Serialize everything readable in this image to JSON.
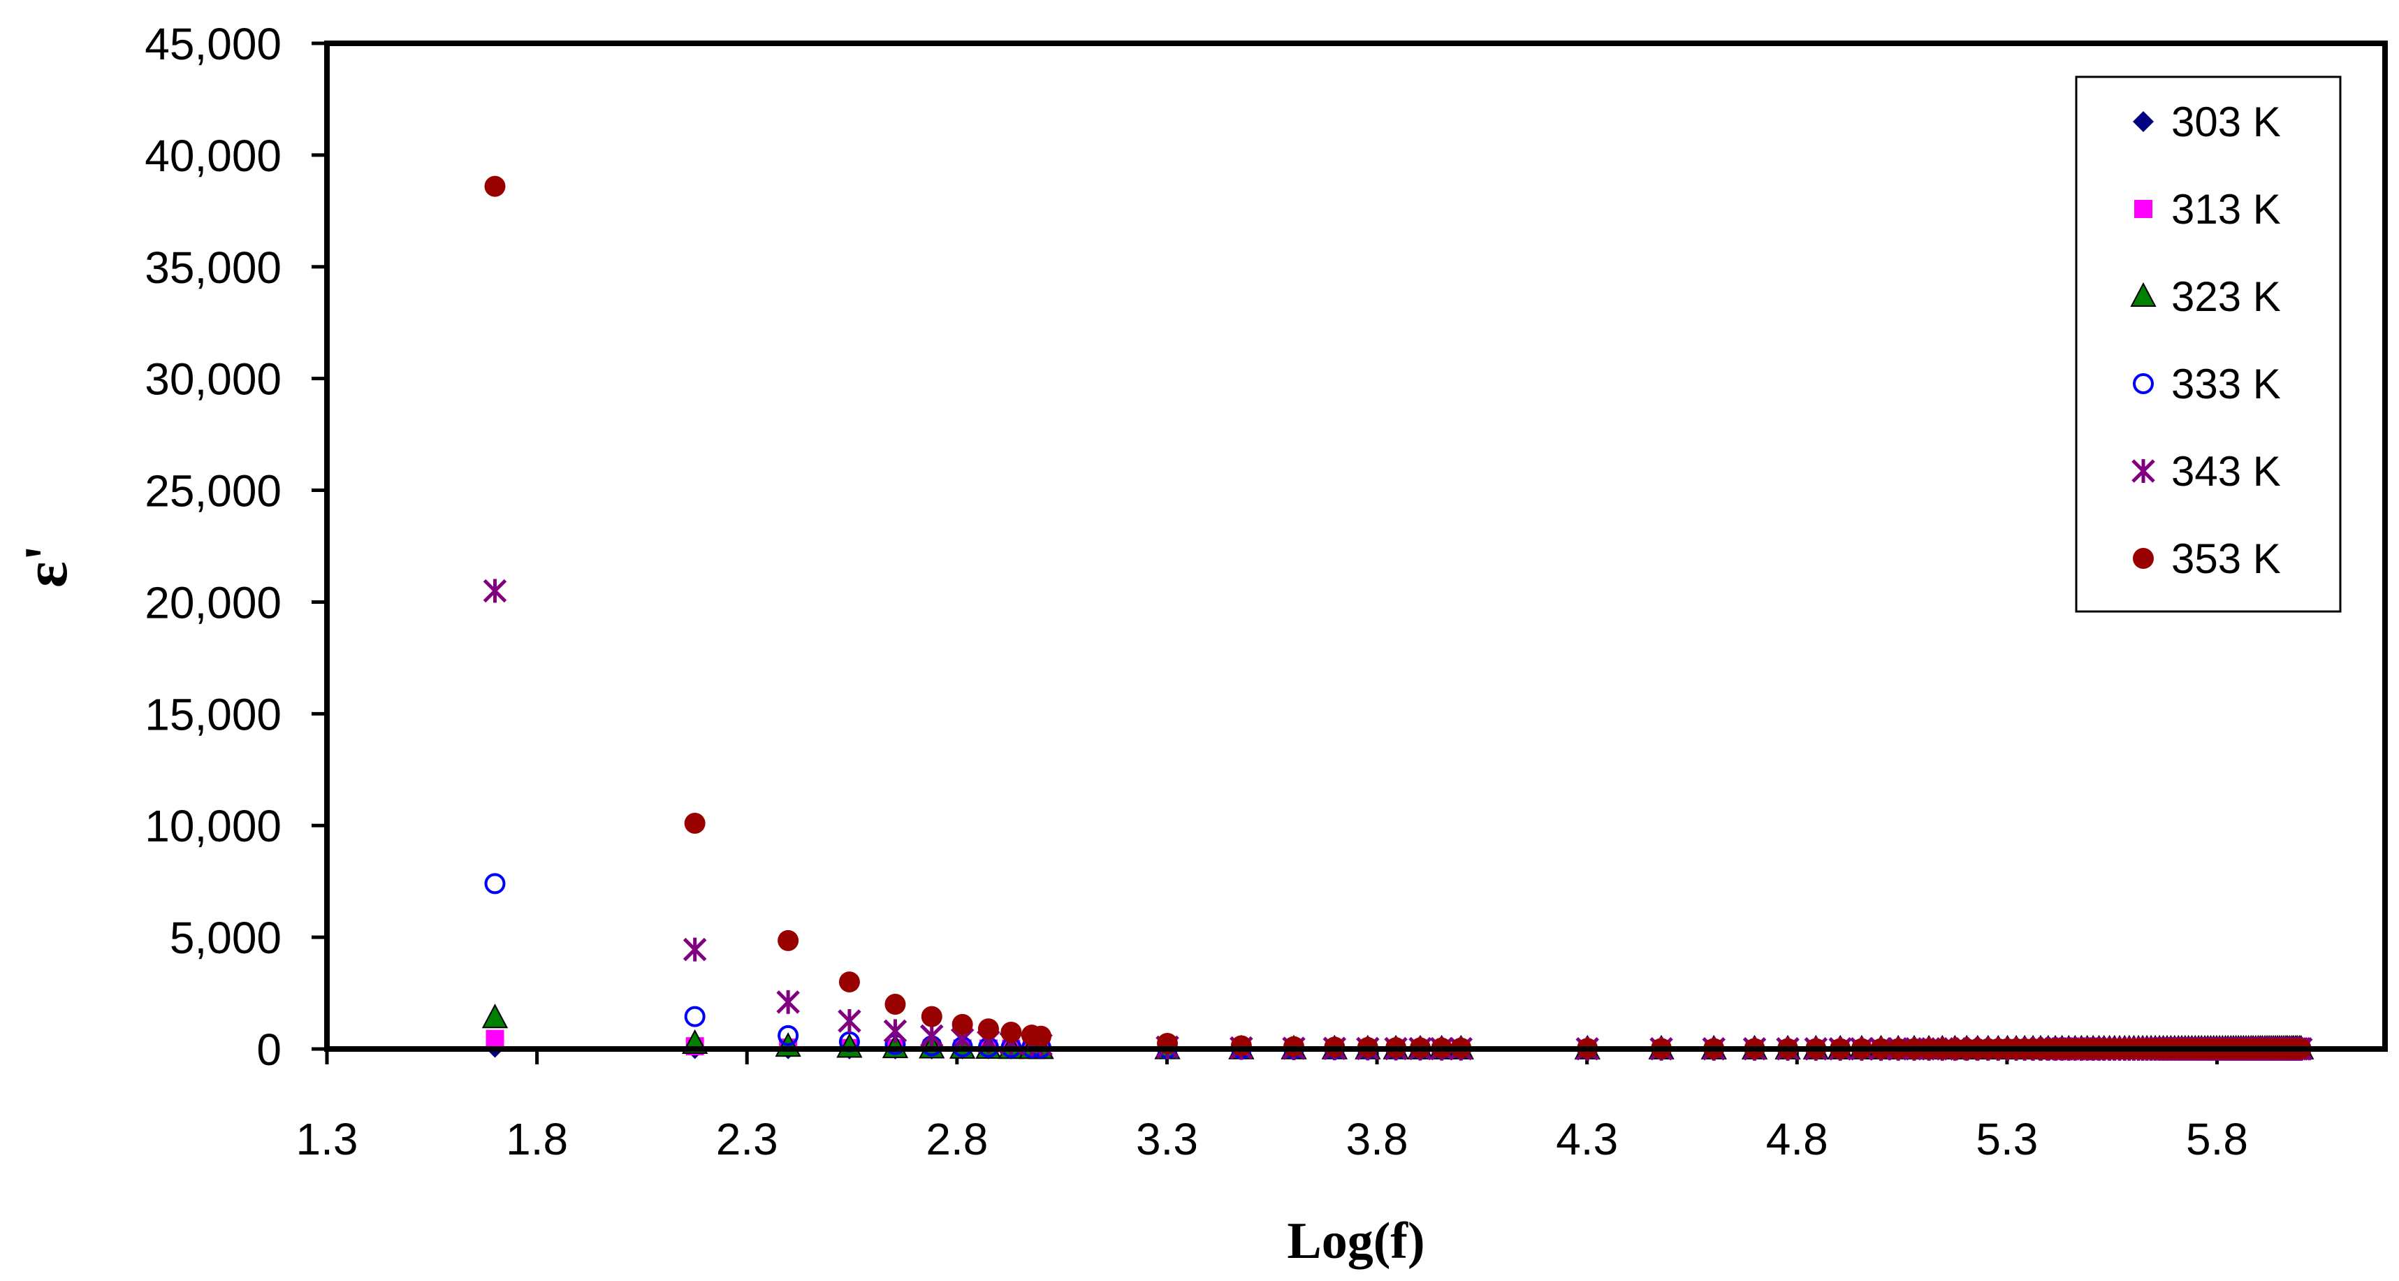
{
  "chart_data": {
    "type": "scatter",
    "title": "",
    "xlabel": "Log(f)",
    "ylabel": "ε'",
    "xlim": [
      1.3,
      6.2
    ],
    "ylim": [
      0,
      45000
    ],
    "x_ticks": [
      1.3,
      1.8,
      2.3,
      2.8,
      3.3,
      3.8,
      4.3,
      4.8,
      5.3,
      5.8
    ],
    "x_tick_labels": [
      "1.3",
      "1.8",
      "2.3",
      "2.8",
      "3.3",
      "3.8",
      "4.3",
      "4.8",
      "5.3",
      "5.8"
    ],
    "y_ticks": [
      0,
      5000,
      10000,
      15000,
      20000,
      25000,
      30000,
      35000,
      40000,
      45000
    ],
    "y_tick_labels": [
      "0",
      "5,000",
      "10,000",
      "15,000",
      "20,000",
      "25,000",
      "30,000",
      "35,000",
      "40,000",
      "45,000"
    ],
    "grid": false,
    "legend_position": "top-right",
    "x": [
      1.7,
      2.176,
      2.398,
      2.544,
      2.653,
      2.74,
      2.813,
      2.875,
      2.929,
      2.978,
      3.0,
      3.301,
      3.477,
      3.602,
      3.699,
      3.778,
      3.845,
      3.903,
      3.954,
      4.0,
      4.301,
      4.477,
      4.602,
      4.699,
      4.778,
      4.845,
      4.903,
      4.954,
      5.0,
      5.041,
      5.079,
      5.114,
      5.146,
      5.176,
      5.204,
      5.23,
      5.255,
      5.279,
      5.301,
      5.322,
      5.342,
      5.362,
      5.38,
      5.398,
      5.415,
      5.431,
      5.447,
      5.462,
      5.477,
      5.491,
      5.505,
      5.519,
      5.531,
      5.544,
      5.556,
      5.568,
      5.58,
      5.591,
      5.602,
      5.613,
      5.623,
      5.633,
      5.643,
      5.653,
      5.663,
      5.672,
      5.681,
      5.69,
      5.699,
      5.708,
      5.716,
      5.724,
      5.732,
      5.74,
      5.748,
      5.756,
      5.763,
      5.771,
      5.778,
      5.785,
      5.792,
      5.799,
      5.806,
      5.813,
      5.82,
      5.826,
      5.833,
      5.839,
      5.845,
      5.851,
      5.857,
      5.863,
      5.869,
      5.875,
      5.881,
      5.886,
      5.892,
      5.898,
      5.903,
      5.908,
      5.914,
      5.919,
      5.924,
      5.929,
      5.934,
      5.939,
      5.944,
      5.949,
      5.954,
      5.959,
      5.964,
      5.968,
      5.973,
      5.978,
      5.982,
      5.987,
      5.991,
      5.996,
      6.0
    ],
    "series": [
      {
        "name": "303 K",
        "color": "#000080",
        "marker": "diamond",
        "values": [
          80,
          20,
          10,
          5,
          4,
          3,
          3,
          2,
          2,
          2,
          2,
          1,
          1,
          1,
          1,
          1,
          1,
          1,
          1,
          1,
          1,
          1,
          1,
          1,
          1,
          1,
          1,
          1,
          1,
          1,
          1,
          1,
          1,
          1,
          1,
          1,
          1,
          1,
          1,
          1,
          1,
          1,
          1,
          1,
          1,
          1,
          1,
          1,
          1,
          1,
          1,
          1,
          1,
          1,
          1,
          1,
          1,
          1,
          1,
          1,
          1,
          1,
          1,
          1,
          1,
          1,
          1,
          1,
          1,
          1,
          1,
          1,
          1,
          1,
          1,
          1,
          1,
          1,
          1,
          1,
          1,
          1,
          1,
          1,
          1,
          1,
          1,
          1,
          1,
          1,
          1,
          1,
          1,
          1,
          1,
          1,
          1,
          1,
          1,
          1,
          1,
          1,
          1,
          1,
          1,
          1,
          1,
          1,
          1,
          1,
          1,
          1,
          1,
          1,
          1,
          1,
          1,
          1,
          1
        ]
      },
      {
        "name": "313 K",
        "color": "#FF00FF",
        "marker": "square",
        "values": [
          450,
          120,
          60,
          40,
          30,
          25,
          20,
          18,
          16,
          15,
          14,
          8,
          6,
          5,
          5,
          4,
          4,
          4,
          3,
          3,
          3,
          3,
          3,
          3,
          3,
          3,
          3,
          3,
          3,
          3,
          3,
          3,
          3,
          3,
          3,
          3,
          3,
          3,
          3,
          3,
          3,
          3,
          3,
          3,
          3,
          3,
          3,
          3,
          3,
          3,
          3,
          3,
          3,
          3,
          3,
          3,
          3,
          3,
          3,
          3,
          3,
          3,
          3,
          3,
          3,
          3,
          3,
          3,
          3,
          3,
          3,
          3,
          3,
          3,
          3,
          3,
          3,
          3,
          3,
          3,
          3,
          3,
          3,
          3,
          3,
          3,
          3,
          3,
          3,
          3,
          3,
          3,
          3,
          3,
          3,
          3,
          3,
          3,
          3,
          3,
          3,
          3,
          3,
          3,
          3,
          3,
          3,
          3,
          3,
          3,
          3,
          3,
          3,
          3,
          3,
          3,
          3,
          3,
          3
        ]
      },
      {
        "name": "323 K",
        "color": "#008000",
        "marker": "triangle",
        "values": [
          1400,
          250,
          120,
          80,
          60,
          45,
          35,
          30,
          25,
          22,
          20,
          12,
          9,
          8,
          7,
          6,
          6,
          5,
          5,
          5,
          4,
          4,
          4,
          4,
          4,
          4,
          4,
          4,
          4,
          4,
          4,
          4,
          4,
          4,
          4,
          4,
          4,
          4,
          4,
          4,
          4,
          4,
          4,
          4,
          4,
          4,
          4,
          4,
          4,
          4,
          4,
          4,
          4,
          4,
          4,
          4,
          4,
          4,
          4,
          4,
          4,
          4,
          4,
          4,
          4,
          4,
          4,
          4,
          4,
          4,
          4,
          4,
          4,
          4,
          4,
          4,
          4,
          4,
          4,
          4,
          4,
          4,
          4,
          4,
          4,
          4,
          4,
          4,
          4,
          4,
          4,
          4,
          4,
          4,
          4,
          4,
          4,
          4,
          4,
          4,
          4,
          4,
          4,
          4,
          4,
          4,
          4,
          4,
          4,
          4,
          4,
          4,
          4,
          4,
          4,
          4,
          4,
          4,
          4
        ]
      },
      {
        "name": "333 K",
        "color": "#0000FF",
        "marker": "circle-open",
        "values": [
          7400,
          1450,
          600,
          320,
          200,
          140,
          100,
          80,
          65,
          55,
          50,
          25,
          15,
          12,
          10,
          9,
          8,
          7,
          7,
          6,
          5,
          5,
          5,
          5,
          5,
          5,
          5,
          5,
          5,
          5,
          5,
          5,
          5,
          5,
          5,
          5,
          5,
          5,
          5,
          5,
          5,
          5,
          5,
          5,
          5,
          5,
          5,
          5,
          5,
          5,
          5,
          5,
          5,
          5,
          5,
          5,
          5,
          5,
          5,
          5,
          5,
          5,
          5,
          5,
          5,
          5,
          5,
          5,
          5,
          5,
          5,
          5,
          5,
          5,
          5,
          5,
          5,
          5,
          5,
          5,
          5,
          5,
          5,
          5,
          5,
          5,
          5,
          5,
          5,
          5,
          5,
          5,
          5,
          5,
          5,
          5,
          5,
          5,
          5,
          5,
          5,
          5,
          5,
          5,
          5,
          5,
          5,
          5,
          5,
          5,
          5,
          5,
          5,
          5,
          5,
          5,
          5,
          5,
          5
        ]
      },
      {
        "name": "343 K",
        "color": "#800080",
        "marker": "asterisk",
        "values": [
          20500,
          4450,
          2100,
          1250,
          800,
          580,
          430,
          330,
          260,
          210,
          190,
          80,
          45,
          32,
          25,
          20,
          17,
          15,
          13,
          12,
          9,
          8,
          7,
          7,
          7,
          6,
          6,
          6,
          6,
          6,
          6,
          6,
          6,
          6,
          6,
          6,
          6,
          6,
          6,
          6,
          6,
          6,
          6,
          6,
          6,
          6,
          6,
          6,
          6,
          6,
          6,
          6,
          6,
          6,
          6,
          6,
          6,
          6,
          6,
          6,
          6,
          6,
          6,
          6,
          6,
          6,
          6,
          6,
          6,
          6,
          6,
          6,
          6,
          6,
          6,
          6,
          6,
          6,
          6,
          6,
          6,
          6,
          6,
          6,
          6,
          6,
          6,
          6,
          6,
          6,
          6,
          6,
          6,
          6,
          6,
          6,
          6,
          6,
          6,
          6,
          6,
          6,
          6,
          6,
          6,
          6,
          6,
          6,
          6,
          6,
          6,
          6,
          6,
          6,
          6,
          6,
          6,
          6,
          6
        ]
      },
      {
        "name": "353 K",
        "color": "#990000",
        "marker": "circle-filled",
        "values": [
          38600,
          10100,
          4850,
          3000,
          2000,
          1450,
          1100,
          900,
          750,
          620,
          570,
          250,
          140,
          100,
          80,
          65,
          55,
          48,
          42,
          38,
          25,
          20,
          17,
          15,
          14,
          13,
          12,
          12,
          11,
          11,
          11,
          10,
          10,
          10,
          10,
          10,
          10,
          10,
          10,
          10,
          10,
          10,
          10,
          10,
          10,
          10,
          10,
          10,
          10,
          10,
          10,
          10,
          10,
          10,
          10,
          10,
          10,
          10,
          10,
          10,
          10,
          10,
          10,
          10,
          10,
          10,
          10,
          10,
          10,
          10,
          10,
          10,
          10,
          10,
          10,
          10,
          10,
          10,
          10,
          10,
          10,
          10,
          10,
          10,
          10,
          10,
          10,
          10,
          10,
          10,
          10,
          10,
          10,
          10,
          10,
          10,
          10,
          10,
          10,
          10,
          10,
          10,
          10,
          10,
          10,
          10,
          10,
          10,
          10,
          10,
          10,
          10,
          10,
          10,
          10,
          10,
          10,
          10,
          10
        ]
      }
    ]
  }
}
